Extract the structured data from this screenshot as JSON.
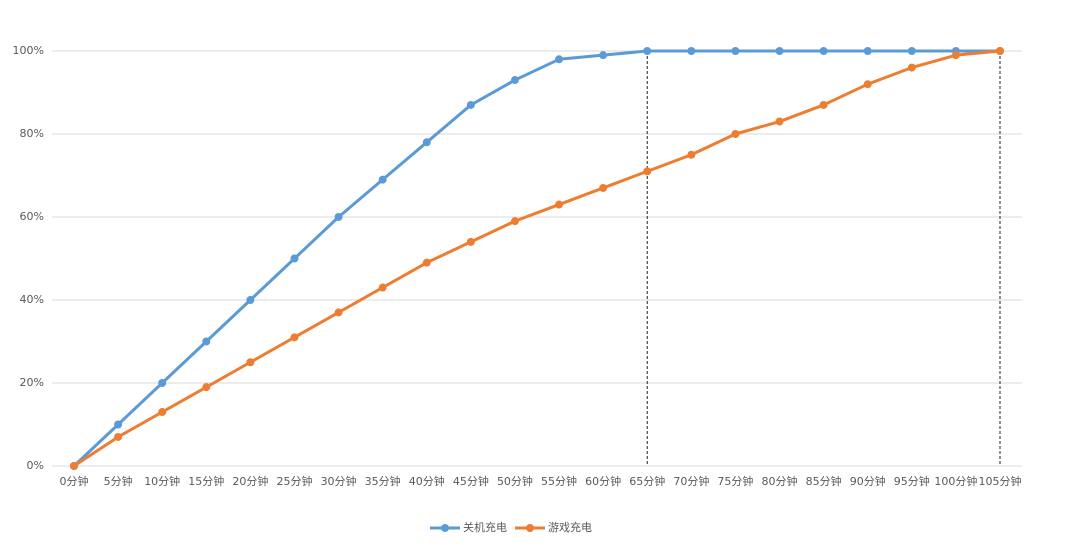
{
  "chart_data": {
    "type": "line",
    "categories": [
      "0分钟",
      "5分钟",
      "10分钟",
      "15分钟",
      "20分钟",
      "25分钟",
      "30分钟",
      "35分钟",
      "40分钟",
      "45分钟",
      "50分钟",
      "55分钟",
      "60分钟",
      "65分钟",
      "70分钟",
      "75分钟",
      "80分钟",
      "85分钟",
      "90分钟",
      "95分钟",
      "100分钟",
      "105分钟"
    ],
    "series": [
      {
        "name": "关机充电",
        "color": "#5b9bd5",
        "values": [
          0,
          10,
          20,
          30,
          40,
          50,
          60,
          69,
          78,
          87,
          93,
          98,
          99,
          100,
          100,
          100,
          100,
          100,
          100,
          100,
          100,
          100
        ]
      },
      {
        "name": "游戏充电",
        "color": "#ed7d31",
        "values": [
          0,
          7,
          13,
          19,
          25,
          31,
          37,
          43,
          49,
          54,
          59,
          63,
          67,
          71,
          75,
          80,
          83,
          87,
          92,
          96,
          99,
          100
        ]
      }
    ],
    "ylim": [
      0,
      100
    ],
    "yticks": [
      {
        "value": 0,
        "label": "0%"
      },
      {
        "value": 20,
        "label": "20%"
      },
      {
        "value": 40,
        "label": "40%"
      },
      {
        "value": 60,
        "label": "60%"
      },
      {
        "value": 80,
        "label": "80%"
      },
      {
        "value": 100,
        "label": "100%"
      }
    ],
    "grid": true,
    "legend": "bottom",
    "vlines": [
      "65分钟",
      "105分钟"
    ]
  }
}
